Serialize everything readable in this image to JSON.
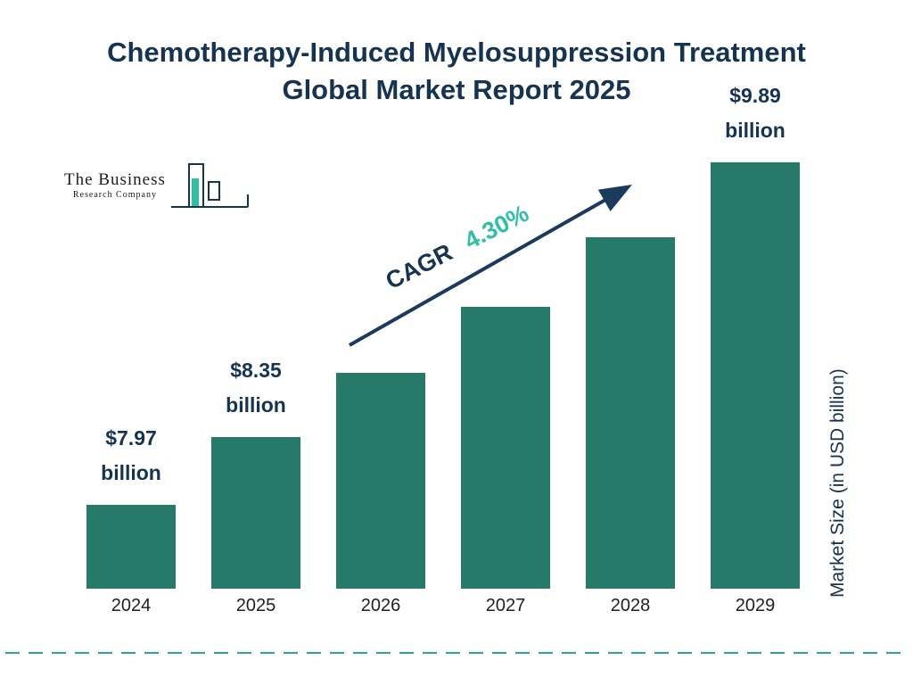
{
  "title": "Chemotherapy-Induced Myelosuppression Treatment Global Market Report 2025",
  "logo": {
    "name": "The Business",
    "subname": "Research Company"
  },
  "annotation": {
    "cagr_label": "CAGR",
    "cagr_value": "4.30%"
  },
  "chart_data": {
    "type": "bar",
    "title": "Chemotherapy-Induced Myelosuppression Treatment Global Market Report 2025",
    "categories": [
      "2024",
      "2025",
      "2026",
      "2027",
      "2028",
      "2029"
    ],
    "values": [
      7.97,
      8.35,
      8.71,
      9.08,
      9.47,
      9.89
    ],
    "labeled_points": [
      {
        "category": "2024",
        "line1": "$7.97",
        "line2": "billion"
      },
      {
        "category": "2025",
        "line1": "$8.35",
        "line2": "billion"
      },
      {
        "category": "2029",
        "line1": "$9.89",
        "line2": "billion"
      }
    ],
    "cagr": "4.30%",
    "xlabel": "",
    "ylabel": "Market Size (in USD billion)",
    "ylim": [
      7.5,
      10
    ],
    "grid": false,
    "legend": "none"
  },
  "colors": {
    "title": "#16334F",
    "bar": "#27796A",
    "accent_teal": "#2EBFA5",
    "arrow": "#1B3A5C",
    "dashed_line": "#2AA79B"
  }
}
